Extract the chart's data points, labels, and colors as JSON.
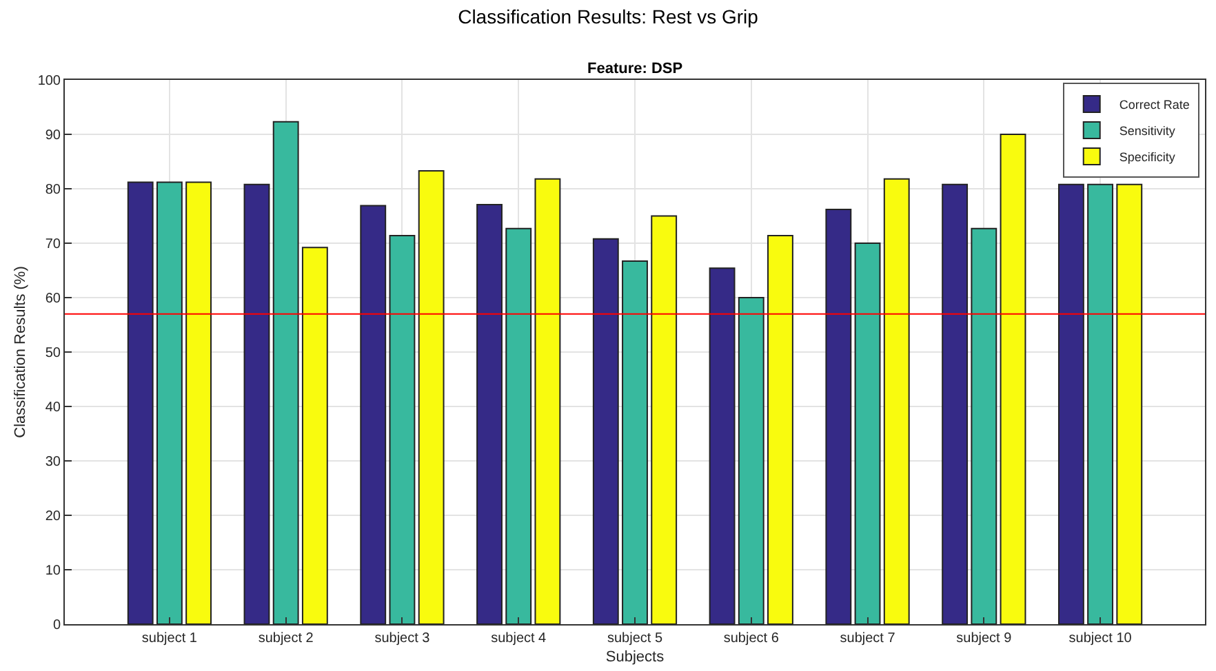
{
  "chart_data": {
    "type": "bar",
    "title": "Classification Results: Rest vs Grip",
    "subtitle": "Feature: DSP",
    "xlabel": "Subjects",
    "ylabel": "Classification Results (%)",
    "categories": [
      "subject 1",
      "subject 2",
      "subject 3",
      "subject 4",
      "subject 5",
      "subject 6",
      "subject 7",
      "subject 9",
      "subject 10"
    ],
    "series": [
      {
        "name": "Correct Rate",
        "color": "#352a87",
        "values": [
          81.2,
          80.8,
          76.9,
          77.1,
          70.8,
          65.4,
          76.2,
          80.8,
          80.8
        ]
      },
      {
        "name": "Sensitivity",
        "color": "#38b99e",
        "values": [
          81.2,
          92.3,
          71.4,
          72.7,
          66.7,
          60.0,
          70.0,
          72.7,
          80.8
        ]
      },
      {
        "name": "Specificity",
        "color": "#f9fb0e",
        "values": [
          81.2,
          69.2,
          83.3,
          81.8,
          75.0,
          71.4,
          81.8,
          90.0,
          80.8
        ]
      }
    ],
    "ylim": [
      0,
      100
    ],
    "yticks": [
      0,
      10,
      20,
      30,
      40,
      50,
      60,
      70,
      80,
      90,
      100
    ],
    "grid": true,
    "legend": "top right",
    "ref_lines": [
      {
        "axis": "y",
        "value": 57,
        "color": "#ff0000"
      }
    ]
  }
}
